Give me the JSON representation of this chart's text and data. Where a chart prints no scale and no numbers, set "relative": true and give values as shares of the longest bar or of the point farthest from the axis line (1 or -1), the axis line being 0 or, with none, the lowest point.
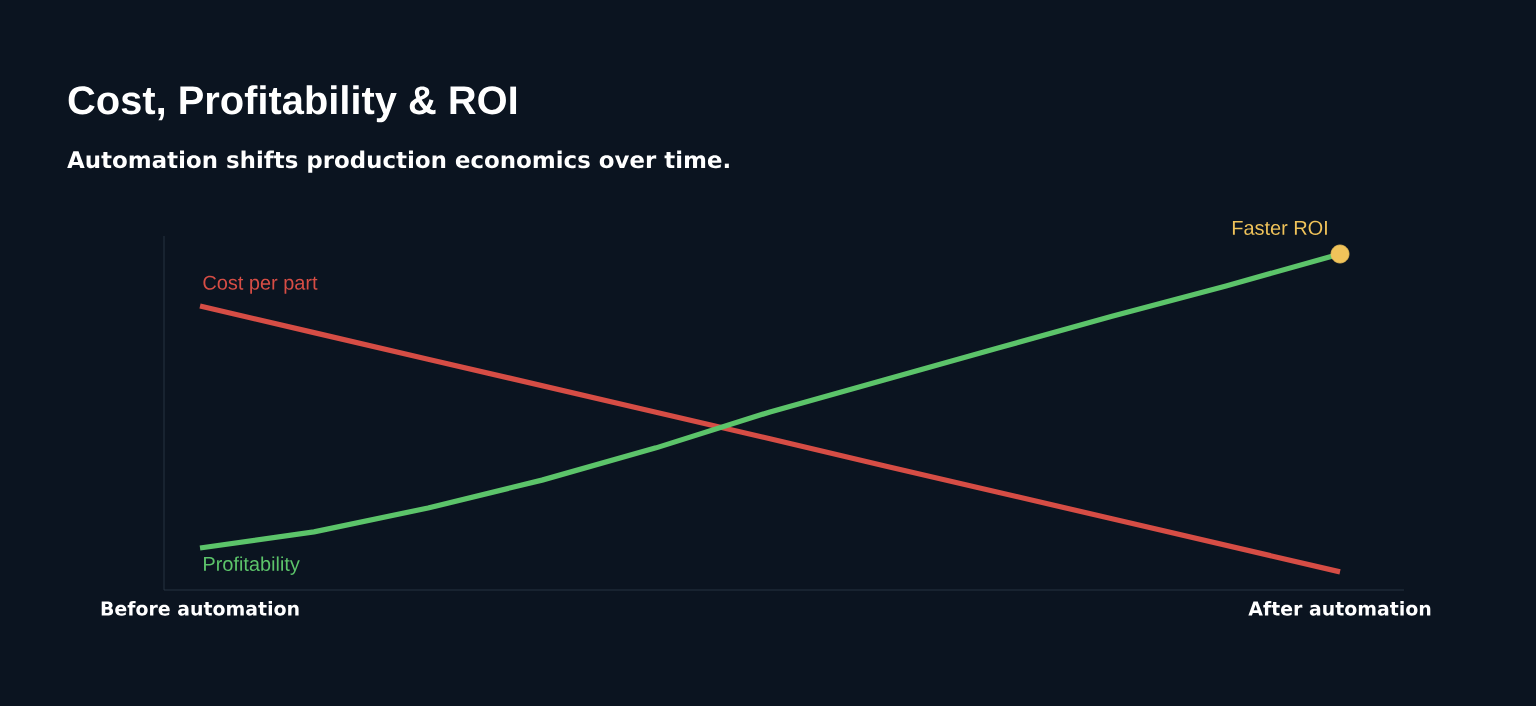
{
  "chart_data": {
    "type": "line",
    "title": "Cost, Profitability & ROI",
    "subtitle": "Automation shifts production economics over time.",
    "relative": true,
    "categories": [
      "Before automation",
      null,
      null,
      null,
      null,
      null,
      null,
      null,
      null,
      null,
      "After automation"
    ],
    "series": [
      {
        "name": "Cost per part",
        "color": "#d64d45",
        "values": [
          0.845,
          0.766,
          0.687,
          0.608,
          0.529,
          0.45,
          0.37,
          0.291,
          0.212,
          0.133,
          0.054
        ]
      },
      {
        "name": "Profitability",
        "color": "#5cc46a",
        "values": [
          0.125,
          0.173,
          0.244,
          0.327,
          0.423,
          0.53,
          0.625,
          0.72,
          0.815,
          0.905,
          1
        ]
      },
      {
        "type": "scatter",
        "color": "#f0c35a",
        "values": [
          null,
          null,
          null,
          null,
          null,
          null,
          null,
          null,
          null,
          null,
          1
        ]
      }
    ],
    "annotations": [
      {
        "text": "Faster ROI",
        "x": "After automation",
        "y": 1
      }
    ],
    "line_style": "solid"
  }
}
